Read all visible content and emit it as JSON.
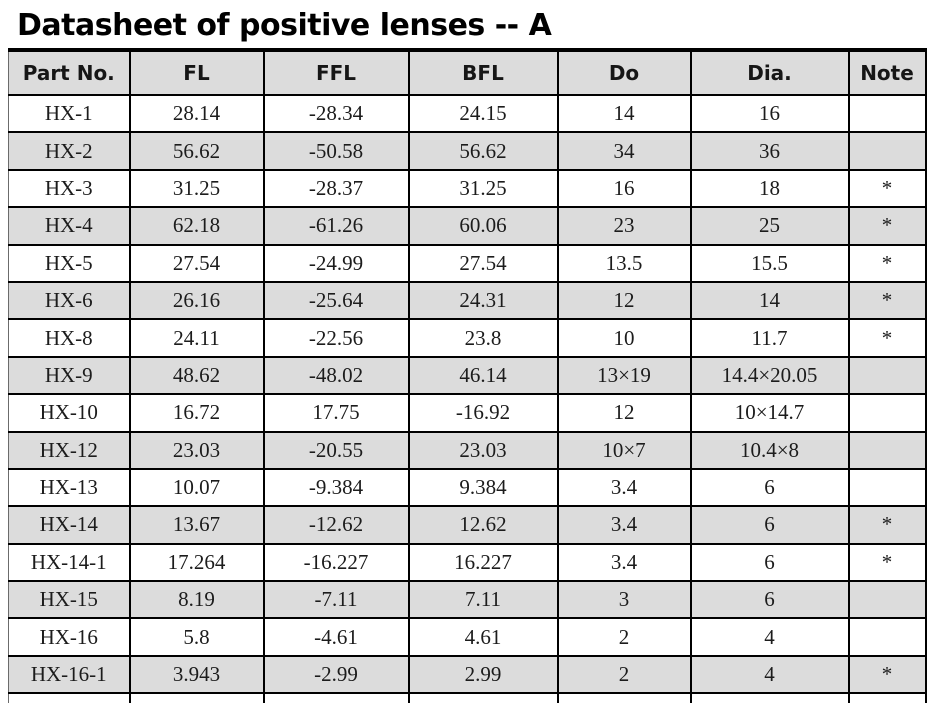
{
  "title": "Datasheet of positive lenses -- A",
  "table": {
    "columns": [
      "Part No.",
      "FL",
      "FFL",
      "BFL",
      "Do",
      "Dia.",
      "Note"
    ],
    "rows": [
      [
        "HX-1",
        "28.14",
        "-28.34",
        "24.15",
        "14",
        "16",
        ""
      ],
      [
        "HX-2",
        "56.62",
        "-50.58",
        "56.62",
        "34",
        "36",
        ""
      ],
      [
        "HX-3",
        "31.25",
        "-28.37",
        "31.25",
        "16",
        "18",
        "*"
      ],
      [
        "HX-4",
        "62.18",
        "-61.26",
        "60.06",
        "23",
        "25",
        "*"
      ],
      [
        "HX-5",
        "27.54",
        "-24.99",
        "27.54",
        "13.5",
        "15.5",
        "*"
      ],
      [
        "HX-6",
        "26.16",
        "-25.64",
        "24.31",
        "12",
        "14",
        "*"
      ],
      [
        "HX-8",
        "24.11",
        "-22.56",
        "23.8",
        "10",
        "11.7",
        "*"
      ],
      [
        "HX-9",
        "48.62",
        "-48.02",
        "46.14",
        "13×19",
        "14.4×20.05",
        ""
      ],
      [
        "HX-10",
        "16.72",
        "17.75",
        "-16.92",
        "12",
        "10×14.7",
        ""
      ],
      [
        "HX-12",
        "23.03",
        "-20.55",
        "23.03",
        "10×7",
        "10.4×8",
        ""
      ],
      [
        "HX-13",
        "10.07",
        "-9.384",
        "9.384",
        "3.4",
        "6",
        ""
      ],
      [
        "HX-14",
        "13.67",
        "-12.62",
        "12.62",
        "3.4",
        "6",
        "*"
      ],
      [
        "HX-14-1",
        "17.264",
        "-16.227",
        "16.227",
        "3.4",
        "6",
        "*"
      ],
      [
        "HX-15",
        "8.19",
        "-7.11",
        "7.11",
        "3",
        "6",
        ""
      ],
      [
        "HX-16",
        "5.8",
        "-4.61",
        "4.61",
        "2",
        "4",
        ""
      ],
      [
        "HX-16-1",
        "3.943",
        "-2.99",
        "2.99",
        "2",
        "4",
        "*"
      ]
    ]
  },
  "colors": {
    "row_shaded": "#dcdcdc",
    "row_plain": "#ffffff",
    "border": "#000000",
    "title_text": "#000000",
    "body_text": "#1c1c1c"
  }
}
